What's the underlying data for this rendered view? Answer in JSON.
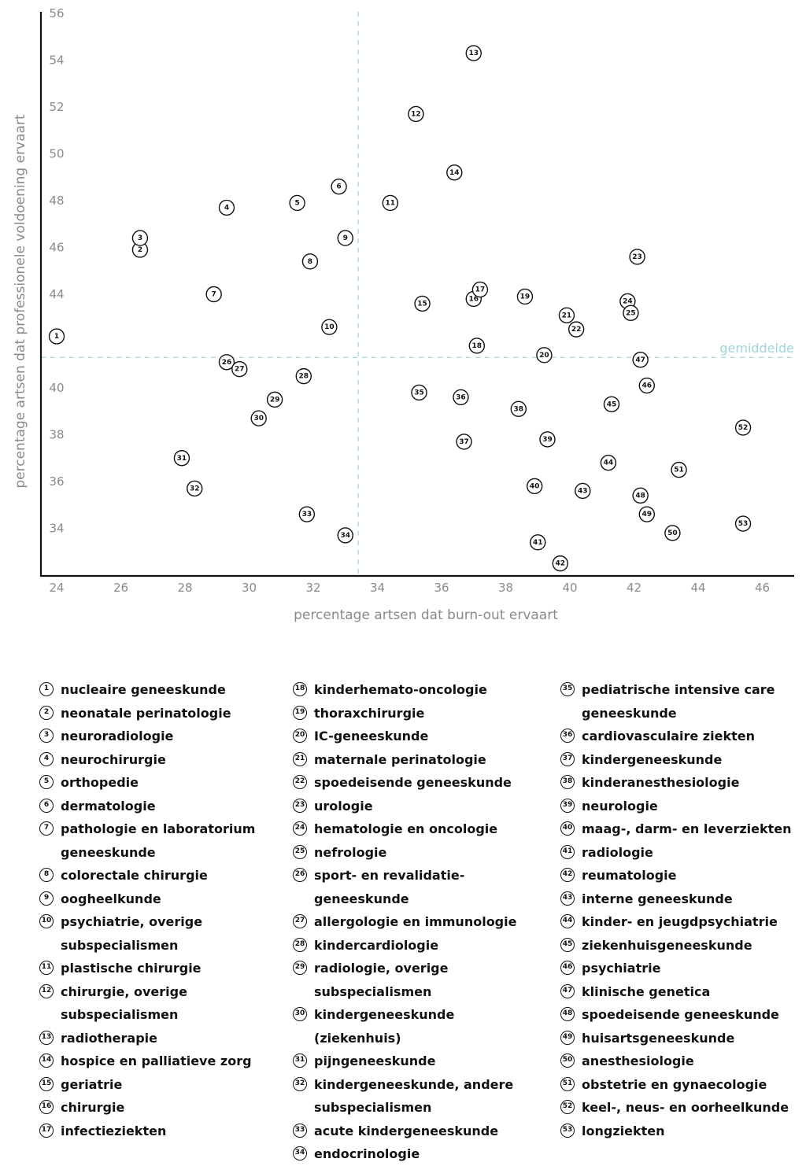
{
  "chart_data": {
    "type": "scatter",
    "title": "",
    "xlabel": "percentage artsen dat burn-out ervaart",
    "ylabel": "percentage artsen dat professionele voldoening ervaart",
    "xlim": [
      23.5,
      47
    ],
    "ylim": [
      32,
      56
    ],
    "xticks": [
      24,
      26,
      28,
      30,
      32,
      34,
      36,
      38,
      40,
      42,
      44,
      46
    ],
    "yticks": [
      34,
      36,
      38,
      40,
      44,
      46,
      48,
      50,
      52,
      54,
      56
    ],
    "grid": false,
    "mean_lines": {
      "x": 33.4,
      "y": 41.3,
      "label": "gemiddelde",
      "color": "#9fd6d8"
    },
    "points": [
      {
        "id": 1,
        "label": "nucleaire geneeskunde",
        "x": 24.0,
        "y": 42.2
      },
      {
        "id": 2,
        "label": "neonatale perinatologie",
        "x": 26.6,
        "y": 45.9
      },
      {
        "id": 3,
        "label": "neuroradiologie",
        "x": 26.6,
        "y": 46.4
      },
      {
        "id": 4,
        "label": "neurochirurgie",
        "x": 29.3,
        "y": 47.7
      },
      {
        "id": 5,
        "label": "orthopedie",
        "x": 31.5,
        "y": 47.9
      },
      {
        "id": 6,
        "label": "dermatologie",
        "x": 32.8,
        "y": 48.6
      },
      {
        "id": 7,
        "label": "pathologie en laboratorium geneeskunde",
        "x": 28.9,
        "y": 44.0
      },
      {
        "id": 8,
        "label": "colorectale chirurgie",
        "x": 31.9,
        "y": 45.4
      },
      {
        "id": 9,
        "label": "oogheelkunde",
        "x": 33.0,
        "y": 46.4
      },
      {
        "id": 10,
        "label": "psychiatrie, overige subspecialismen",
        "x": 32.5,
        "y": 42.6
      },
      {
        "id": 11,
        "label": "plastische chirurgie",
        "x": 34.4,
        "y": 47.9
      },
      {
        "id": 12,
        "label": "chirurgie, overige subspecialismen",
        "x": 35.2,
        "y": 51.7
      },
      {
        "id": 13,
        "label": "radiotherapie",
        "x": 37.0,
        "y": 54.3
      },
      {
        "id": 14,
        "label": "hospice en palliatieve zorg",
        "x": 36.4,
        "y": 49.2
      },
      {
        "id": 15,
        "label": "geriatrie",
        "x": 35.4,
        "y": 43.6
      },
      {
        "id": 16,
        "label": "chirurgie",
        "x": 37.0,
        "y": 43.8
      },
      {
        "id": 17,
        "label": "infectieziekten",
        "x": 37.2,
        "y": 44.2
      },
      {
        "id": 18,
        "label": "kinderhemato-oncologie",
        "x": 37.1,
        "y": 41.8
      },
      {
        "id": 19,
        "label": "thoraxchirurgie",
        "x": 38.6,
        "y": 43.9
      },
      {
        "id": 20,
        "label": "IC-geneeskunde",
        "x": 39.2,
        "y": 41.4
      },
      {
        "id": 21,
        "label": "maternale perinatologie",
        "x": 39.9,
        "y": 43.1
      },
      {
        "id": 22,
        "label": "spoedeisende geneeskunde",
        "x": 40.2,
        "y": 42.5
      },
      {
        "id": 23,
        "label": "urologie",
        "x": 42.1,
        "y": 45.6
      },
      {
        "id": 24,
        "label": "hematologie en oncologie",
        "x": 41.8,
        "y": 43.7
      },
      {
        "id": 25,
        "label": "nefrologie",
        "x": 41.9,
        "y": 43.2
      },
      {
        "id": 26,
        "label": "sport- en revalidatie- geneeskunde",
        "x": 29.3,
        "y": 41.1
      },
      {
        "id": 27,
        "label": "allergologie en immunologie",
        "x": 29.7,
        "y": 40.8
      },
      {
        "id": 28,
        "label": "kindercardiologie",
        "x": 31.7,
        "y": 40.5
      },
      {
        "id": 29,
        "label": "radiologie, overige subspecialismen",
        "x": 30.8,
        "y": 39.5
      },
      {
        "id": 30,
        "label": "kindergeneeskunde (ziekenhuis)",
        "x": 30.3,
        "y": 38.7
      },
      {
        "id": 31,
        "label": "pijngeneeskunde",
        "x": 27.9,
        "y": 37.0
      },
      {
        "id": 32,
        "label": "kindergeneeskunde, andere subspecialismen",
        "x": 28.3,
        "y": 35.7
      },
      {
        "id": 33,
        "label": "acute kindergeneeskunde",
        "x": 31.8,
        "y": 34.6
      },
      {
        "id": 34,
        "label": "endocrinologie",
        "x": 33.0,
        "y": 33.7
      },
      {
        "id": 35,
        "label": "pediatrische intensive care geneeskunde",
        "x": 35.3,
        "y": 39.8
      },
      {
        "id": 36,
        "label": "cardiovasculaire ziekten",
        "x": 36.6,
        "y": 39.6
      },
      {
        "id": 37,
        "label": "kindergeneeskunde",
        "x": 36.7,
        "y": 37.7
      },
      {
        "id": 38,
        "label": "kinderanesthesiologie",
        "x": 38.4,
        "y": 39.1
      },
      {
        "id": 39,
        "label": "neurologie",
        "x": 39.3,
        "y": 37.8
      },
      {
        "id": 40,
        "label": "maag-, darm- en leverziekten",
        "x": 38.9,
        "y": 35.8
      },
      {
        "id": 41,
        "label": "radiologie",
        "x": 39.0,
        "y": 33.4
      },
      {
        "id": 42,
        "label": "reumatologie",
        "x": 39.7,
        "y": 32.5
      },
      {
        "id": 43,
        "label": "interne geneeskunde",
        "x": 40.4,
        "y": 35.6
      },
      {
        "id": 44,
        "label": "kinder- en jeugdpsychiatrie",
        "x": 41.2,
        "y": 36.8
      },
      {
        "id": 45,
        "label": "ziekenhuisgeneeskunde",
        "x": 41.3,
        "y": 39.3
      },
      {
        "id": 46,
        "label": "psychiatrie",
        "x": 42.4,
        "y": 40.1
      },
      {
        "id": 47,
        "label": "klinische genetica",
        "x": 42.2,
        "y": 41.2
      },
      {
        "id": 48,
        "label": "spoedeisende geneeskunde",
        "x": 42.2,
        "y": 35.4
      },
      {
        "id": 49,
        "label": "huisartsgeneeskunde",
        "x": 42.4,
        "y": 34.6
      },
      {
        "id": 50,
        "label": "anesthesiologie",
        "x": 43.2,
        "y": 33.8
      },
      {
        "id": 51,
        "label": "obstetrie en gynaecologie",
        "x": 43.4,
        "y": 36.5
      },
      {
        "id": 52,
        "label": "keel-, neus- en oorheelkunde",
        "x": 45.4,
        "y": 38.3
      },
      {
        "id": 53,
        "label": "longziekten",
        "x": 45.4,
        "y": 34.2
      }
    ]
  },
  "legend": {
    "columns": [
      [
        1,
        2,
        3,
        4,
        5,
        6,
        7,
        8,
        9,
        10,
        11,
        12,
        13,
        14,
        15,
        16,
        17
      ],
      [
        18,
        19,
        20,
        21,
        22,
        23,
        24,
        25,
        26,
        27,
        28,
        29,
        30,
        31,
        32,
        33,
        34
      ],
      [
        35,
        36,
        37,
        38,
        39,
        40,
        41,
        42,
        43,
        44,
        45,
        46,
        47,
        48,
        49,
        50,
        51,
        52,
        53
      ]
    ]
  }
}
